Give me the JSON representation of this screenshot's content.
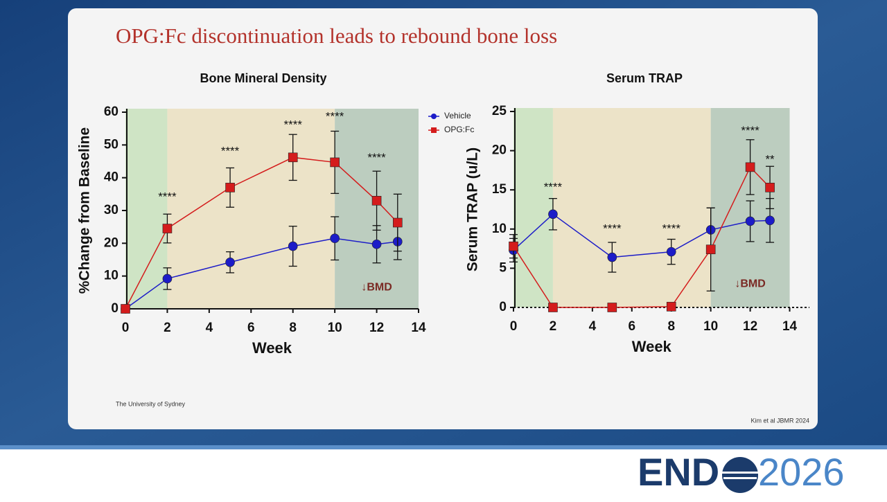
{
  "slide": {
    "title": "OPG:Fc discontinuation leads to rebound bone loss",
    "affiliation": "The University of Sydney",
    "source": "Kim et al JBMR 2024"
  },
  "logo": {
    "left": "END",
    "right": "2026"
  },
  "chart_data": [
    {
      "type": "line",
      "title": "Bone Mineral Density",
      "x_label": "Week",
      "y_label": "%Change from Baseline",
      "x": [
        0,
        2,
        5,
        8,
        10,
        12,
        13
      ],
      "xlim": [
        0,
        14
      ],
      "xticks": [
        0,
        2,
        4,
        6,
        8,
        10,
        12,
        14
      ],
      "ylim": [
        0,
        60
      ],
      "yticks": [
        0,
        10,
        20,
        30,
        40,
        50,
        60
      ],
      "x_axis_style": "solid",
      "legend": "outside-right",
      "phases": [
        {
          "start": 0,
          "end": 2,
          "color": "#cfe4c5"
        },
        {
          "start": 2,
          "end": 10,
          "color": "#ece3c8"
        },
        {
          "start": 10,
          "end": 14,
          "color": "#bccdbf"
        }
      ],
      "series": [
        {
          "name": "Vehicle",
          "color": "#1c1cc8",
          "marker": "circle",
          "values": [
            0,
            9.2,
            14.2,
            19.1,
            21.5,
            19.7,
            20.5
          ],
          "errors": [
            0,
            3.3,
            3.2,
            6.1,
            6.6,
            5.7,
            5.5
          ]
        },
        {
          "name": "OPG:Fc",
          "color": "#d41c1c",
          "marker": "square",
          "values": [
            0,
            24.5,
            37,
            46.2,
            44.7,
            33,
            26.3
          ],
          "errors": [
            0,
            4.4,
            6,
            7,
            9.5,
            9,
            8.7
          ]
        }
      ],
      "annotations": [
        {
          "text": "****",
          "x": 2,
          "y": 34,
          "color": "#111111"
        },
        {
          "text": "****",
          "x": 5,
          "y": 48,
          "color": "#111111"
        },
        {
          "text": "****",
          "x": 8,
          "y": 56,
          "color": "#111111"
        },
        {
          "text": "****",
          "x": 10,
          "y": 58.5,
          "color": "#111111"
        },
        {
          "text": "****",
          "x": 12,
          "y": 46,
          "color": "#111111"
        },
        {
          "text": "↓BMD",
          "x": 12,
          "y": 6.5,
          "color": "#7a2a24"
        }
      ]
    },
    {
      "type": "line",
      "title": "Serum TRAP",
      "x_label": "Week",
      "y_label": "Serum TRAP (u/L)",
      "x": [
        0,
        2,
        5,
        8,
        10,
        12,
        13
      ],
      "xlim": [
        0,
        15
      ],
      "xticks": [
        0,
        2,
        4,
        6,
        8,
        10,
        12,
        14
      ],
      "ylim": [
        0,
        25
      ],
      "yticks": [
        0,
        5,
        10,
        15,
        20,
        25
      ],
      "x_axis_style": "dotted",
      "phases": [
        {
          "start": 0,
          "end": 2,
          "color": "#cfe4c5"
        },
        {
          "start": 2,
          "end": 10,
          "color": "#ece3c8"
        },
        {
          "start": 10,
          "end": 14,
          "color": "#bccdbf"
        }
      ],
      "series": [
        {
          "name": "Vehicle",
          "color": "#1c1cc8",
          "marker": "circle",
          "values": [
            7.3,
            11.9,
            6.4,
            7.1,
            9.9,
            11,
            11.1
          ],
          "errors": [
            1.5,
            2,
            1.9,
            1.6,
            2.8,
            2.6,
            2.8
          ]
        },
        {
          "name": "OPG:Fc",
          "color": "#d41c1c",
          "marker": "square",
          "values": [
            7.8,
            0,
            0,
            0.1,
            7.4,
            17.9,
            15.3
          ],
          "errors": [
            1.5,
            0,
            0,
            0,
            5.3,
            3.5,
            2.7
          ]
        }
      ],
      "annotations": [
        {
          "text": "****",
          "x": 2,
          "y": 15.3,
          "color": "#111111"
        },
        {
          "text": "****",
          "x": 5,
          "y": 10,
          "color": "#111111"
        },
        {
          "text": "****",
          "x": 8,
          "y": 10,
          "color": "#111111"
        },
        {
          "text": "****",
          "x": 12,
          "y": 22.5,
          "color": "#111111"
        },
        {
          "text": "**",
          "x": 13,
          "y": 18.8,
          "color": "#111111"
        },
        {
          "text": "↓BMD",
          "x": 12,
          "y": 3,
          "color": "#7a2a24"
        }
      ]
    }
  ]
}
